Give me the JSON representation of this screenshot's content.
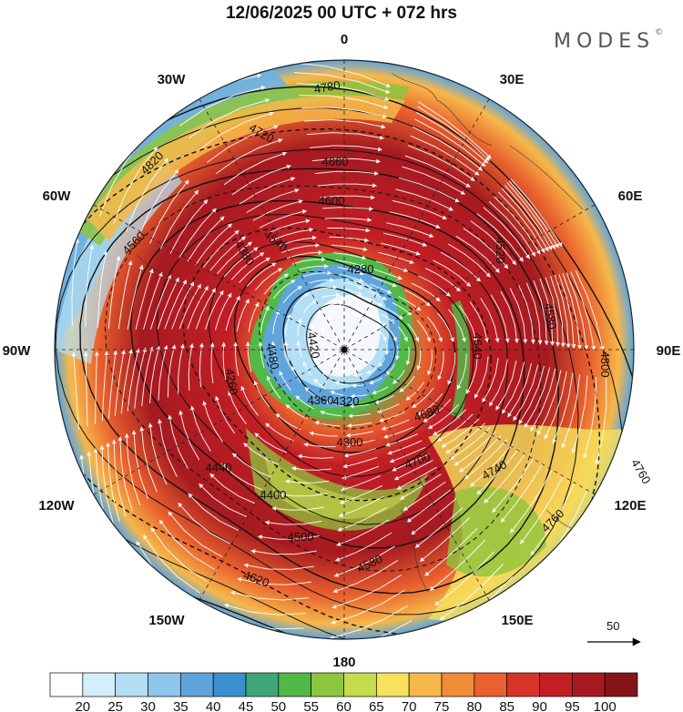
{
  "header": {
    "title": "12/06/2025  00 UTC  + 072 hrs",
    "brand": "MODES",
    "brand_mark": "©"
  },
  "map": {
    "projection": "polar-stereographic-north",
    "longitude_labels": [
      {
        "text": "0",
        "lon": 0
      },
      {
        "text": "30E",
        "lon": 30
      },
      {
        "text": "60E",
        "lon": 60
      },
      {
        "text": "90E",
        "lon": 90
      },
      {
        "text": "120E",
        "lon": 120
      },
      {
        "text": "150E",
        "lon": 150
      },
      {
        "text": "180",
        "lon": 180
      },
      {
        "text": "150W",
        "lon": -150
      },
      {
        "text": "120W",
        "lon": -120
      },
      {
        "text": "90W",
        "lon": -90
      },
      {
        "text": "60W",
        "lon": -60
      },
      {
        "text": "30W",
        "lon": -30
      }
    ],
    "contour_labels": [
      "4780",
      "4720",
      "4660",
      "4600",
      "4540",
      "4480",
      "4420",
      "4360",
      "4320",
      "4300",
      "4260",
      "4280",
      "4380",
      "4400",
      "4440",
      "4500",
      "4520",
      "4580",
      "4640",
      "4680",
      "4700",
      "4740",
      "4760",
      "4800",
      "4820",
      "4560",
      "4620",
      "4580",
      "4760"
    ],
    "wind_reference": {
      "value": "50"
    }
  },
  "colorbar": {
    "ticks": [
      "20",
      "25",
      "30",
      "35",
      "40",
      "45",
      "50",
      "55",
      "60",
      "65",
      "70",
      "75",
      "80",
      "85",
      "90",
      "95",
      "100"
    ],
    "colors": [
      "#ffffff",
      "#d4effa",
      "#b3dff5",
      "#8ec6ec",
      "#5fa5dc",
      "#3c8fcf",
      "#40a67a",
      "#52b948",
      "#8ec63f",
      "#c6dc4d",
      "#f6e25c",
      "#f6b84a",
      "#f18c39",
      "#e9612e",
      "#d9342a",
      "#c21e25",
      "#a51a20",
      "#861419"
    ]
  }
}
